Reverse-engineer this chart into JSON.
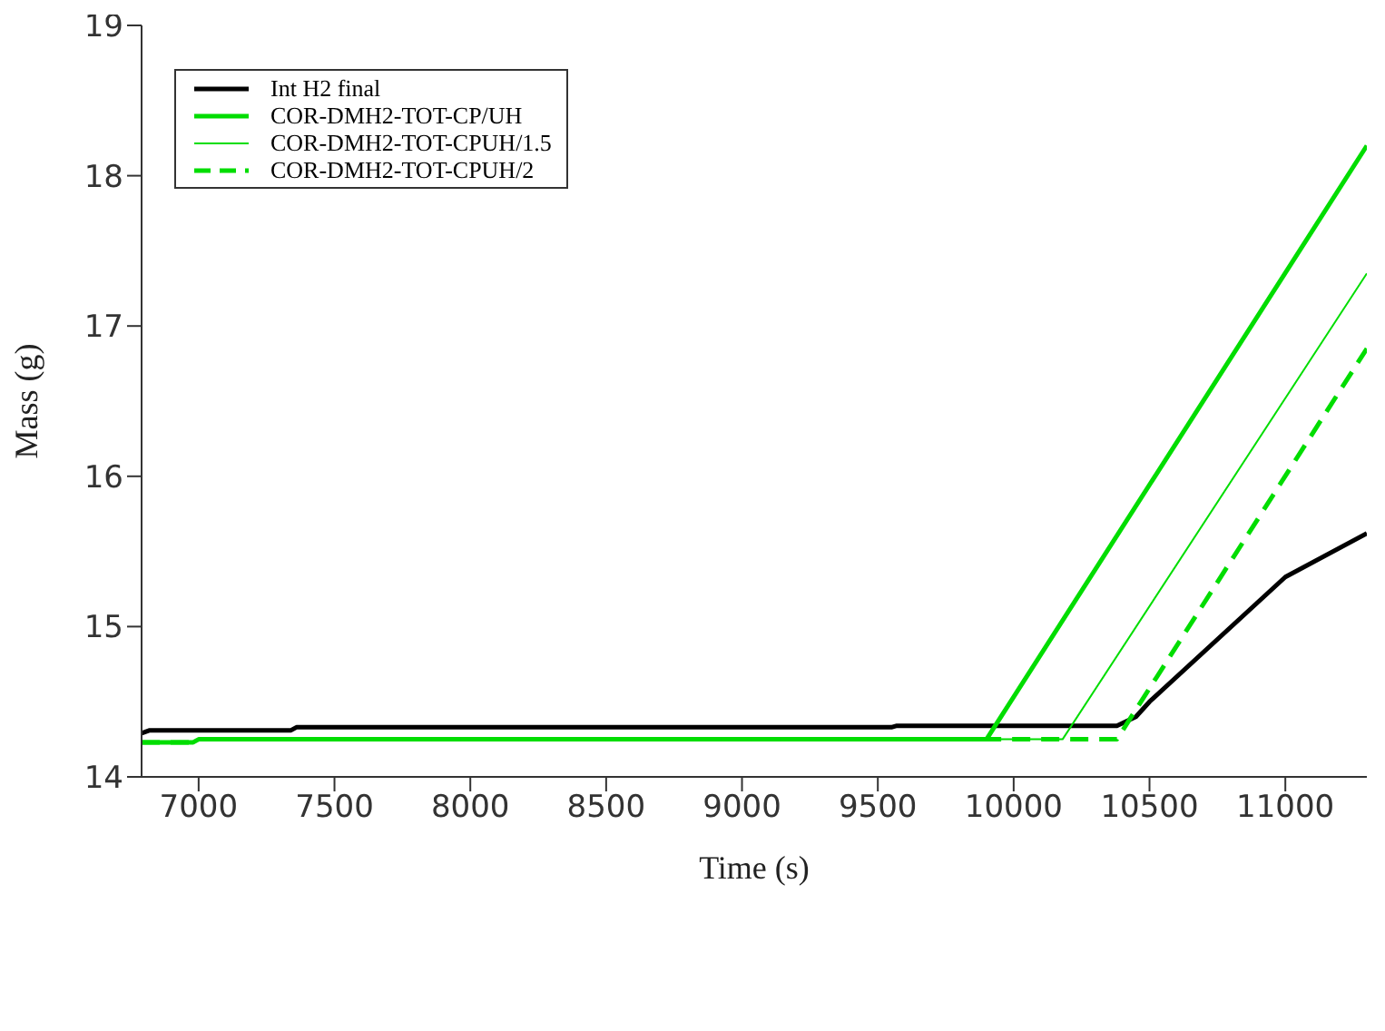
{
  "chart_data": {
    "type": "line",
    "xlabel": "Time (s)",
    "ylabel": "Mass (g)",
    "xlim": [
      6790,
      11300
    ],
    "xticks": [
      7000,
      7500,
      8000,
      8500,
      9000,
      9500,
      10000,
      10500,
      11000
    ],
    "ylim": [
      14,
      19
    ],
    "yticks": [
      14,
      15,
      16,
      17,
      18,
      19
    ],
    "grid": false,
    "legend": "top left",
    "marker": "none",
    "series": [
      {
        "name": "Int H2 final",
        "color": "#000000",
        "line_style": "solid",
        "x": [
          6790,
          6820,
          7340,
          7360,
          9550,
          9570,
          10380,
          10450,
          10500,
          11000,
          11300
        ],
        "values": [
          14.29,
          14.31,
          14.31,
          14.33,
          14.33,
          14.34,
          14.34,
          14.4,
          14.5,
          15.33,
          15.62
        ]
      },
      {
        "name": "COR-DMH2-TOT-CP/UH",
        "color": "#00dd00",
        "line_style": "solid",
        "x": [
          6790,
          6980,
          7000,
          9900,
          11300
        ],
        "values": [
          14.23,
          14.23,
          14.25,
          14.25,
          18.2
        ]
      },
      {
        "name": "COR-DMH2-TOT-CPUH/1.5",
        "color": "#00dd00",
        "line_style": "solid",
        "x": [
          6790,
          6980,
          7000,
          10180,
          11300
        ],
        "values": [
          14.23,
          14.23,
          14.25,
          14.25,
          17.35
        ]
      },
      {
        "name": "COR-DMH2-TOT-CPUH/2",
        "color": "#00dd00",
        "line_style": "dashed",
        "x": [
          6790,
          6980,
          7000,
          10380,
          11300
        ],
        "values": [
          14.23,
          14.23,
          14.25,
          14.25,
          16.85
        ]
      }
    ]
  }
}
